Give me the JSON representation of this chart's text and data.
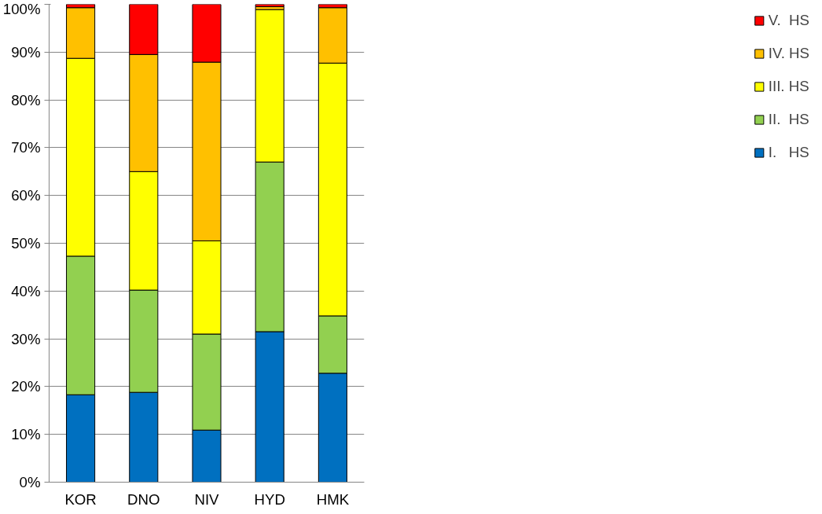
{
  "chart_data": {
    "type": "bar",
    "stacked": true,
    "categories": [
      "KOR",
      "DNO",
      "NIV",
      "HYD",
      "HMK"
    ],
    "series": [
      {
        "name": "I.   HS",
        "color": "#0070c0",
        "values": [
          18.3,
          18.8,
          10.9,
          31.5,
          22.8
        ]
      },
      {
        "name": "II.  HS",
        "color": "#92d050",
        "values": [
          29.0,
          21.4,
          20.1,
          35.5,
          12.0
        ]
      },
      {
        "name": "III. HS",
        "color": "#ffff00",
        "values": [
          41.4,
          24.8,
          19.5,
          31.9,
          52.9
        ]
      },
      {
        "name": "IV. HS",
        "color": "#ffc000",
        "values": [
          10.6,
          24.5,
          37.4,
          0.6,
          11.6
        ]
      },
      {
        "name": "V.  HS",
        "color": "#ff0000",
        "values": [
          0.7,
          10.5,
          12.1,
          0.5,
          0.7
        ]
      }
    ],
    "ylim": [
      0,
      100
    ],
    "yticks": [
      {
        "value": 0,
        "label": "0%"
      },
      {
        "value": 10,
        "label": "10%"
      },
      {
        "value": 20,
        "label": "20%"
      },
      {
        "value": 30,
        "label": "30%"
      },
      {
        "value": 40,
        "label": "40%"
      },
      {
        "value": 50,
        "label": "50%"
      },
      {
        "value": 60,
        "label": "60%"
      },
      {
        "value": 70,
        "label": "70%"
      },
      {
        "value": 80,
        "label": "80%"
      },
      {
        "value": 90,
        "label": "90%"
      },
      {
        "value": 100,
        "label": "100%"
      }
    ],
    "grid": "y",
    "legend": "right"
  }
}
